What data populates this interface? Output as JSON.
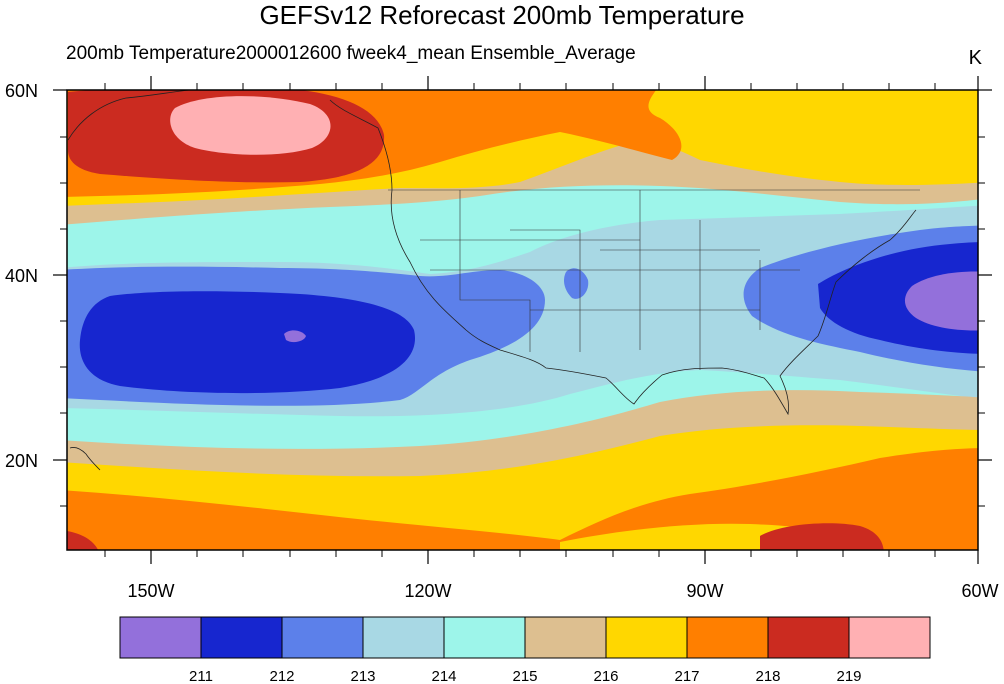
{
  "title": "GEFSv12 Reforecast 200mb Temperature",
  "subtitle": "200mb Temperature2000012600 fweek4_mean Ensemble_Average",
  "units": "K",
  "map": {
    "projection": "cylindrical-equidistant",
    "lon_range": [
      -159,
      -60
    ],
    "lat_range": [
      10,
      60
    ],
    "lon_ticks": [
      {
        "value": -150,
        "label": "150W"
      },
      {
        "value": -120,
        "label": "120W"
      },
      {
        "value": -90,
        "label": "90W"
      },
      {
        "value": -60,
        "label": "60W"
      }
    ],
    "lat_ticks": [
      {
        "value": 60,
        "label": "60N"
      },
      {
        "value": 40,
        "label": "40N"
      },
      {
        "value": 20,
        "label": "20N"
      }
    ]
  },
  "colorbar": {
    "colors": [
      "#9370DB",
      "#1726CF",
      "#5C80EA",
      "#A8D8E4",
      "#9DF5EA",
      "#DDBF90",
      "#FFD700",
      "#FF7F00",
      "#CB2B20",
      "#FFB0B3"
    ],
    "labels": [
      "211",
      "212",
      "213",
      "214",
      "215",
      "216",
      "217",
      "218",
      "219"
    ]
  }
}
